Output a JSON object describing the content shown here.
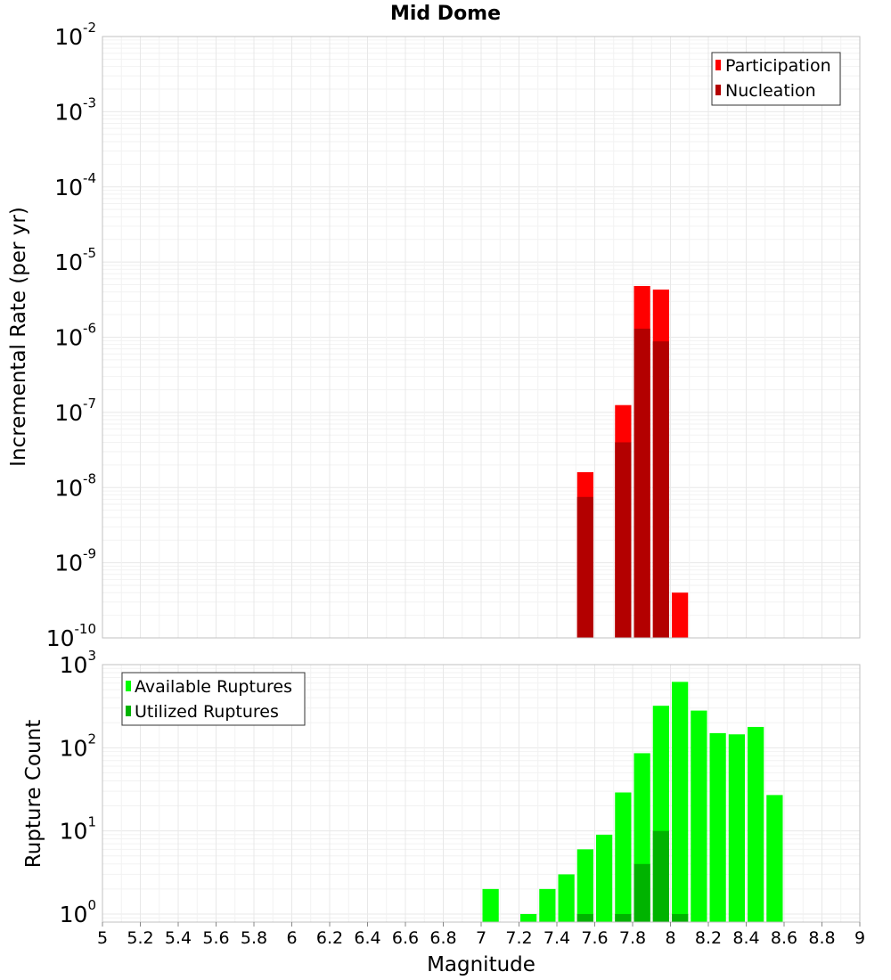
{
  "chart_data": [
    {
      "type": "bar",
      "title": "Mid Dome",
      "xlabel": "Magnitude",
      "ylabel": "Incremental Rate (per yr)",
      "xlim": [
        5,
        9
      ],
      "ylim": [
        1e-10,
        0.01
      ],
      "yscale": "log",
      "bin_width": 0.1,
      "ytick_exponents": [
        "-10",
        "-9",
        "-8",
        "-7",
        "-6",
        "-5",
        "-4",
        "-3",
        "-2"
      ],
      "legend_position": "top-right",
      "series": [
        {
          "name": "Participation",
          "color": "#ff0000",
          "points": [
            {
              "mag": 7.55,
              "value": 1.6e-08
            },
            {
              "mag": 7.75,
              "value": 1.25e-07
            },
            {
              "mag": 7.85,
              "value": 4.8e-06
            },
            {
              "mag": 7.95,
              "value": 4.3e-06
            },
            {
              "mag": 8.05,
              "value": 4e-10
            }
          ]
        },
        {
          "name": "Nucleation",
          "color": "#b30000",
          "points": [
            {
              "mag": 7.55,
              "value": 7.5e-09
            },
            {
              "mag": 7.75,
              "value": 4e-08
            },
            {
              "mag": 7.85,
              "value": 1.3e-06
            },
            {
              "mag": 7.95,
              "value": 8.8e-07
            }
          ]
        }
      ]
    },
    {
      "type": "bar",
      "title": "",
      "xlabel": "Magnitude",
      "ylabel": "Rupture Count",
      "xlim": [
        5,
        9
      ],
      "ylim": [
        0.8,
        1000
      ],
      "yscale": "log",
      "bin_width": 0.1,
      "xticks": [
        "5",
        "5.2",
        "5.4",
        "5.6",
        "5.8",
        "6",
        "6.2",
        "6.4",
        "6.6",
        "6.8",
        "7",
        "7.2",
        "7.4",
        "7.6",
        "7.8",
        "8",
        "8.2",
        "8.4",
        "8.6",
        "8.8",
        "9"
      ],
      "ytick_exponents": [
        "0",
        "1",
        "2",
        "3"
      ],
      "legend_position": "top-left",
      "series": [
        {
          "name": "Available Ruptures",
          "color": "#00ff00",
          "points": [
            {
              "mag": 7.05,
              "value": 2
            },
            {
              "mag": 7.25,
              "value": 1
            },
            {
              "mag": 7.35,
              "value": 2
            },
            {
              "mag": 7.45,
              "value": 3
            },
            {
              "mag": 7.55,
              "value": 6
            },
            {
              "mag": 7.65,
              "value": 9
            },
            {
              "mag": 7.75,
              "value": 29
            },
            {
              "mag": 7.85,
              "value": 86
            },
            {
              "mag": 7.95,
              "value": 320
            },
            {
              "mag": 8.05,
              "value": 620
            },
            {
              "mag": 8.15,
              "value": 280
            },
            {
              "mag": 8.25,
              "value": 150
            },
            {
              "mag": 8.35,
              "value": 145
            },
            {
              "mag": 8.45,
              "value": 178
            },
            {
              "mag": 8.55,
              "value": 27
            }
          ]
        },
        {
          "name": "Utilized Ruptures",
          "color": "#00b300",
          "points": [
            {
              "mag": 7.55,
              "value": 1
            },
            {
              "mag": 7.75,
              "value": 1
            },
            {
              "mag": 7.85,
              "value": 4
            },
            {
              "mag": 7.95,
              "value": 10
            },
            {
              "mag": 8.05,
              "value": 1
            }
          ]
        }
      ]
    }
  ]
}
